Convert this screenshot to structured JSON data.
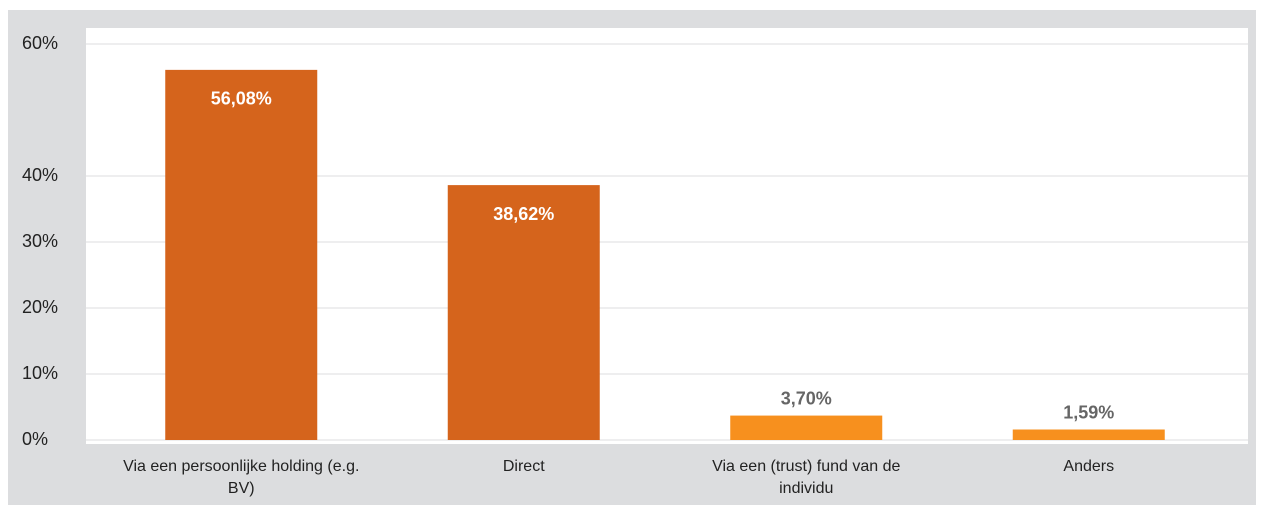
{
  "chart_data": {
    "type": "bar",
    "categories": [
      "Via een persoonlijke holding (e.g. BV)",
      "Direct",
      "Via een (trust) fund van de individu",
      "Anders"
    ],
    "values": [
      56.08,
      38.62,
      3.7,
      1.59
    ],
    "value_labels": [
      "56,08%",
      "38,62%",
      "3,70%",
      "1,59%"
    ],
    "colors": [
      "#d5641c",
      "#d5641c",
      "#f7901e",
      "#f7901e"
    ],
    "ylim": [
      0,
      60
    ],
    "yticks": [
      {
        "value": 0,
        "label": "0%"
      },
      {
        "value": 10,
        "label": "10%"
      },
      {
        "value": 20,
        "label": "20%"
      },
      {
        "value": 30,
        "label": "30%"
      },
      {
        "value": 40,
        "label": "40%"
      },
      {
        "value": 60,
        "label": "60%"
      }
    ],
    "grid": true
  }
}
